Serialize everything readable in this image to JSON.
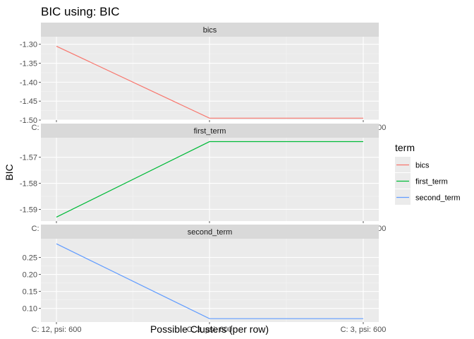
{
  "chart_data": {
    "type": "line",
    "title": "BIC using: BIC",
    "xlabel": "Possible Clusters (per row)",
    "ylabel": "BIC",
    "grid": true,
    "legend": {
      "title": "term",
      "position": "right",
      "entries": [
        "bics",
        "first_term",
        "second_term"
      ]
    },
    "colors": {
      "bics": "#F8766D",
      "first_term": "#00BA38",
      "second_term": "#619CFF"
    },
    "x_tick_labels": [
      "C: 12, psi: 600",
      "C: 3, psi: 600",
      "C: 3, psi: 600"
    ],
    "panels": [
      {
        "strip": "bics",
        "series": "bics",
        "x": [
          1,
          2,
          3
        ],
        "values": [
          -1.305,
          -1.495,
          -1.495
        ],
        "ylim": [
          -1.5,
          -1.28
        ],
        "yticks": [
          -1.5,
          -1.45,
          -1.4,
          -1.35,
          -1.3
        ],
        "ytick_labels": [
          "-1.50",
          "-1.45",
          "-1.40",
          "-1.35",
          "-1.30"
        ]
      },
      {
        "strip": "first_term",
        "series": "first_term",
        "x": [
          1,
          2,
          3
        ],
        "values": [
          -1.593,
          -1.564,
          -1.564
        ],
        "ylim": [
          -1.5945,
          -1.5625
        ],
        "yticks": [
          -1.59,
          -1.58,
          -1.57
        ],
        "ytick_labels": [
          "-1.59",
          "-1.58",
          "-1.57"
        ]
      },
      {
        "strip": "second_term",
        "series": "second_term",
        "x": [
          1,
          2,
          3
        ],
        "values": [
          0.29,
          0.07,
          0.07
        ],
        "ylim": [
          0.06,
          0.305
        ],
        "yticks": [
          0.1,
          0.15,
          0.2,
          0.25
        ],
        "ytick_labels": [
          "0.10",
          "0.15",
          "0.20",
          "0.25"
        ]
      }
    ]
  }
}
